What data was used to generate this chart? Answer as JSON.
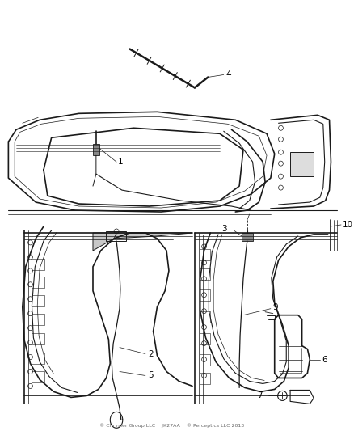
{
  "background_color": "#ffffff",
  "text_color": "#000000",
  "line_color": "#1a1a1a",
  "figsize": [
    4.38,
    5.33
  ],
  "dpi": 100,
  "footer_text": "© Chrysler Group LLC    JK27AA    © Perceptics LLC 2013"
}
